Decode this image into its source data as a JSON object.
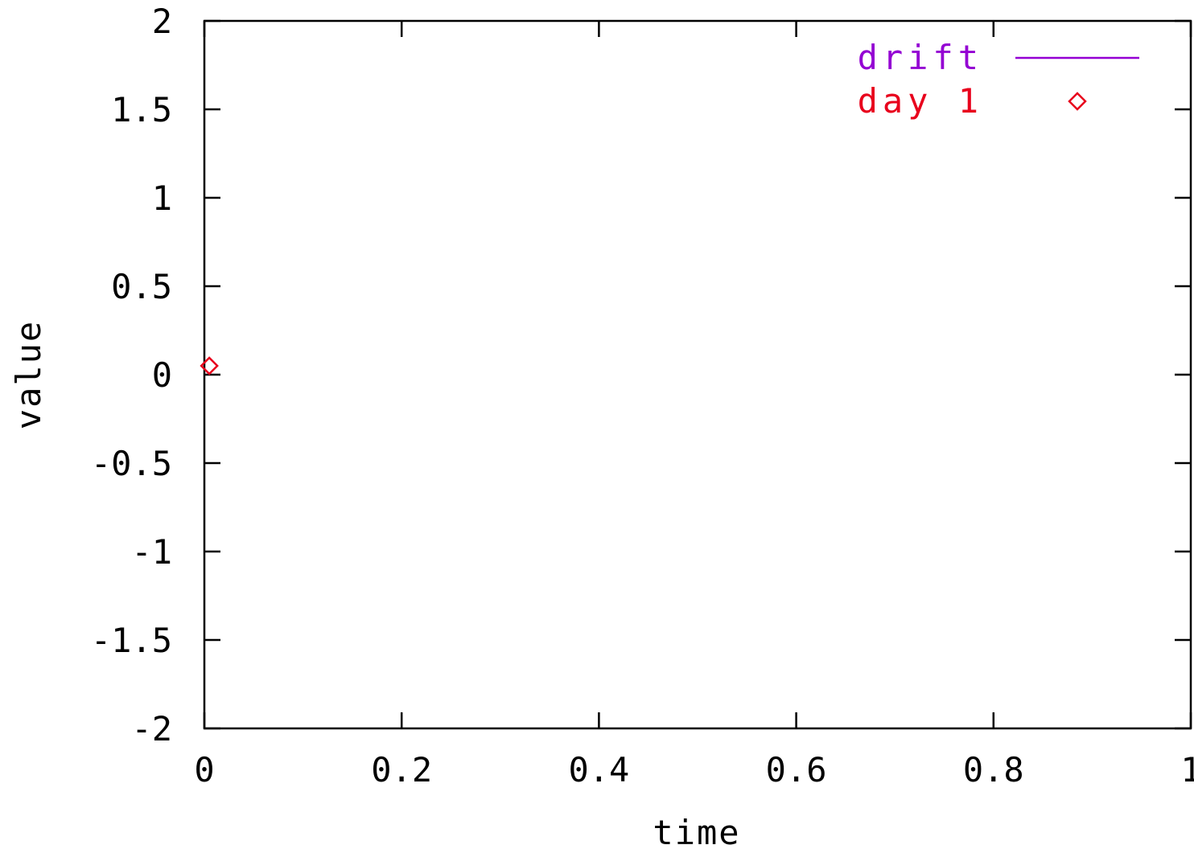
{
  "chart_data": {
    "type": "scatter",
    "xlabel": "time",
    "ylabel": "value",
    "xlim": [
      0,
      1
    ],
    "ylim": [
      -2,
      2
    ],
    "x_ticks": [
      0,
      0.2,
      0.4,
      0.6,
      0.8,
      1
    ],
    "x_tick_labels": [
      "0",
      "0.2",
      "0.4",
      "0.6",
      "0.8",
      "1"
    ],
    "y_ticks": [
      -2,
      -1.5,
      -1,
      -0.5,
      0,
      0.5,
      1,
      1.5,
      2
    ],
    "y_tick_labels": [
      "-2",
      "-1.5",
      "-1",
      "-0.5",
      "0",
      "0.5",
      "1",
      "1.5",
      "2"
    ],
    "grid": false,
    "legend_position": "top-right",
    "series": [
      {
        "name": "drift",
        "style": "line",
        "color": "#9400d3",
        "x": [],
        "y": []
      },
      {
        "name": "day 1",
        "style": "points",
        "marker": "diamond",
        "color": "#e8001c",
        "x": [
          0.005
        ],
        "y": [
          0.05
        ]
      }
    ]
  }
}
